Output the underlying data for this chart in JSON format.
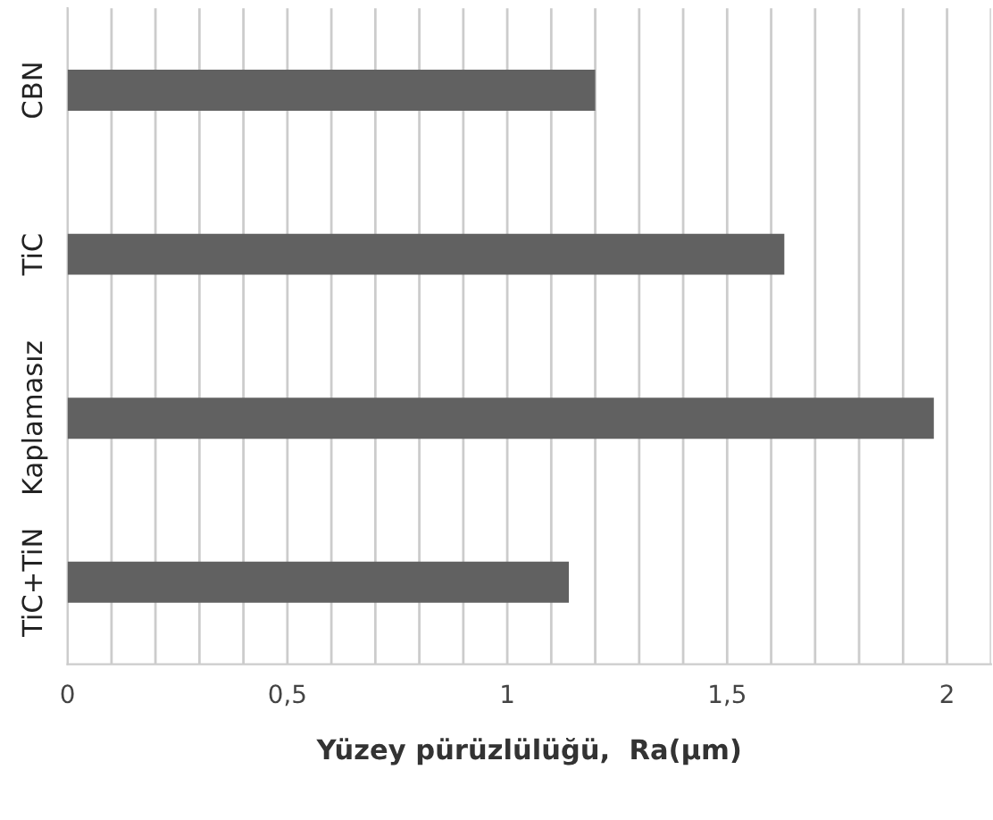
{
  "chart_data": {
    "type": "bar",
    "orientation": "horizontal",
    "categories": [
      "CBN",
      "TiC",
      "Kaplamasız",
      "TiC+TiN"
    ],
    "values": [
      1.2,
      1.63,
      1.97,
      1.14
    ],
    "color": "#616161",
    "xlabel": "Yüzey pürüzlülüğü,  Ra(µm)",
    "xlim": [
      0,
      2.1
    ],
    "xticks": [
      0,
      {
        "value": 0.1,
        "label": null
      },
      {
        "value": 0.2,
        "label": null
      },
      {
        "value": 0.3,
        "label": null
      },
      {
        "value": 0.4,
        "label": null
      },
      {
        "value": 0.5,
        "label": "0,5"
      },
      {
        "value": 0.6,
        "label": null
      },
      {
        "value": 0.7,
        "label": null
      },
      {
        "value": 0.8,
        "label": null
      },
      {
        "value": 0.9,
        "label": null
      },
      1,
      {
        "value": 1.1,
        "label": null
      },
      {
        "value": 1.2,
        "label": null
      },
      {
        "value": 1.3,
        "label": null
      },
      {
        "value": 1.4,
        "label": null
      },
      {
        "value": 1.5,
        "label": "1,5"
      },
      {
        "value": 1.6,
        "label": null
      },
      {
        "value": 1.7,
        "label": null
      },
      {
        "value": 1.8,
        "label": null
      },
      {
        "value": 1.9,
        "label": null
      },
      2,
      {
        "value": 2.1,
        "label": null
      }
    ],
    "grid": "x"
  }
}
